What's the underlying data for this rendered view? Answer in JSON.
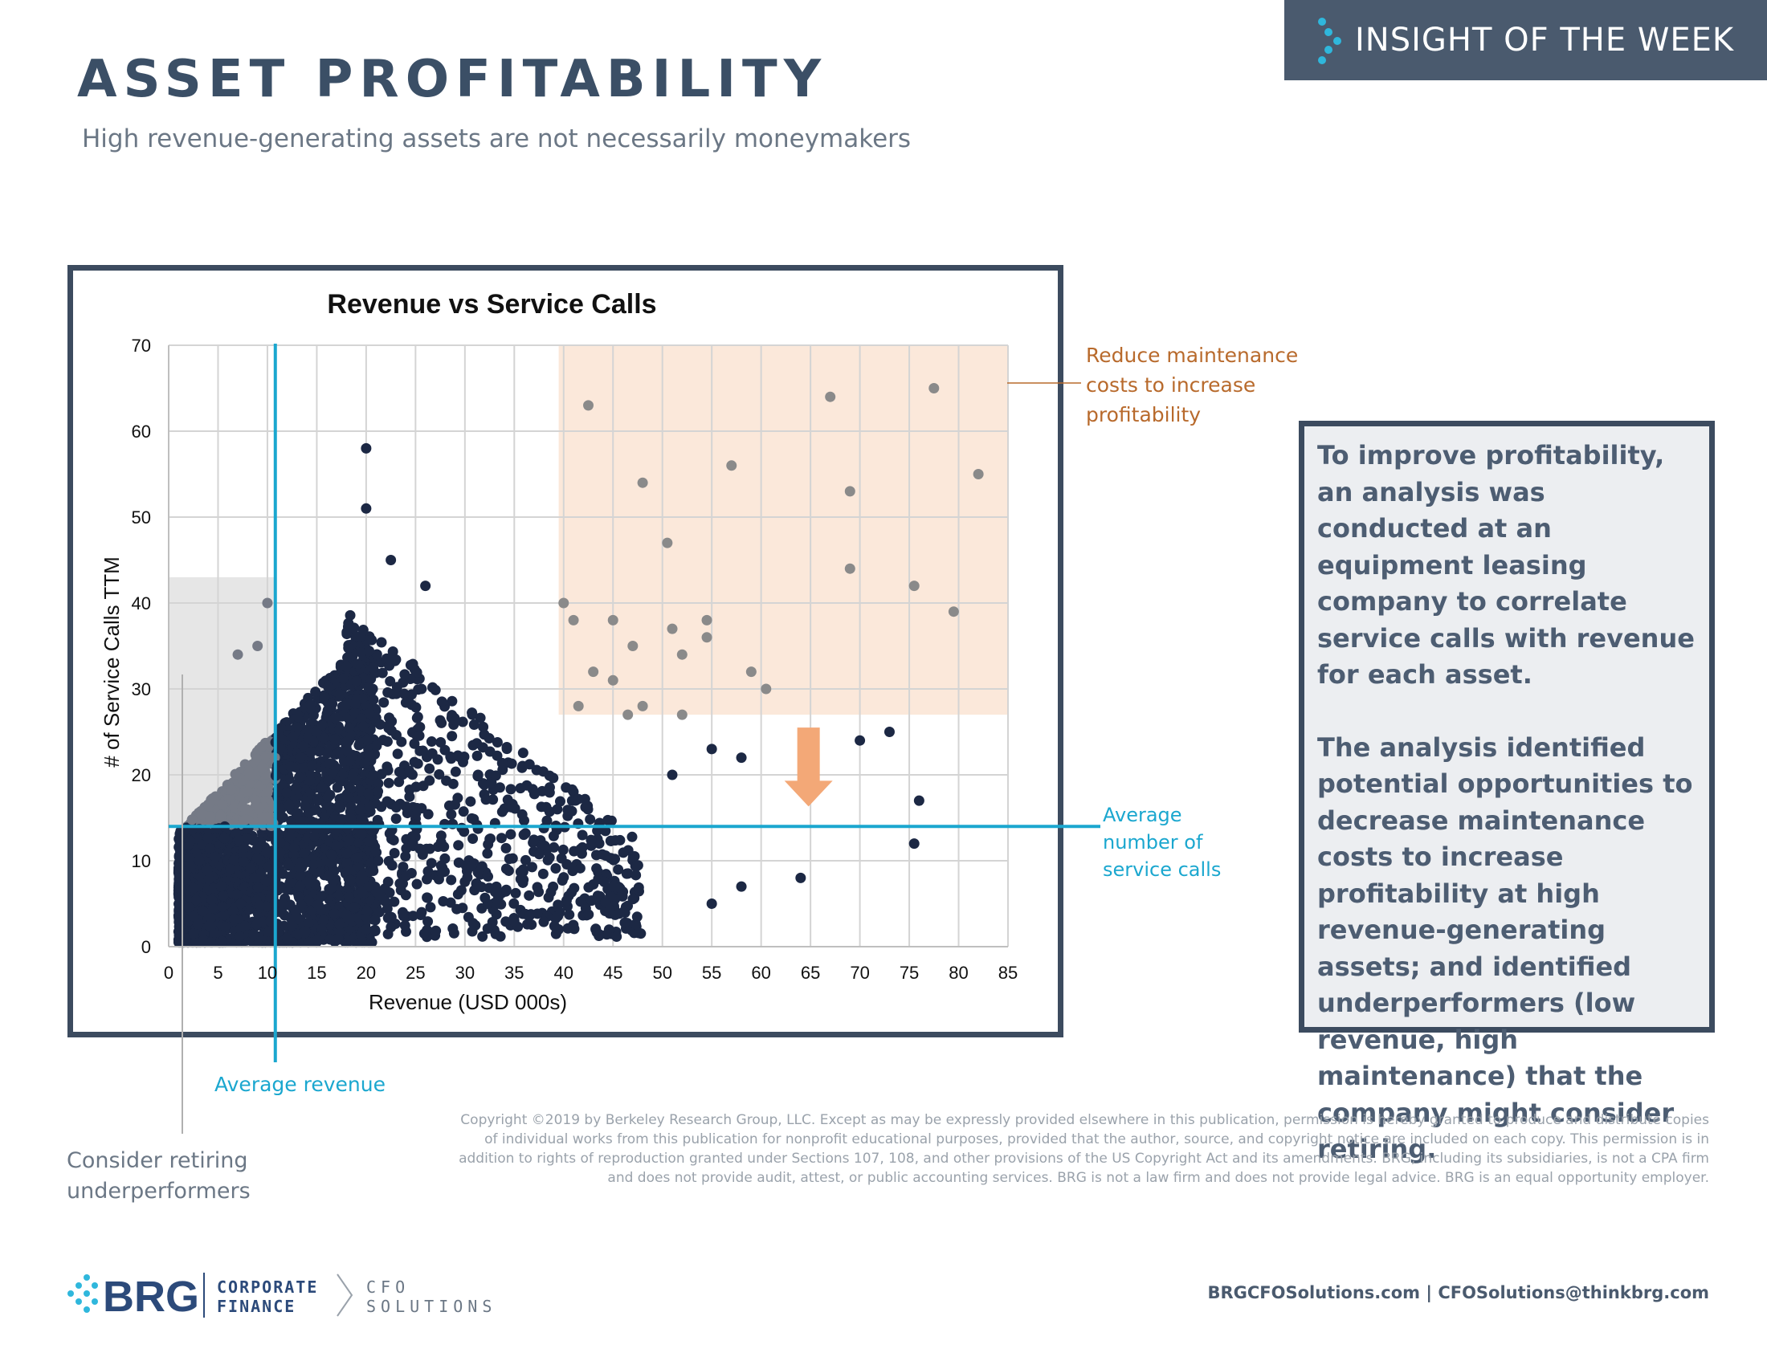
{
  "header": {
    "title": "ASSET PROFITABILITY",
    "subtitle": "High revenue-generating assets are not necessarily moneymakers",
    "banner_label": "INSIGHT OF THE WEEK"
  },
  "annotations": {
    "reduce_maintenance": [
      "Reduce maintenance",
      "costs to increase",
      "profitability"
    ],
    "average_calls": [
      "Average",
      "number of",
      "service calls"
    ],
    "average_revenue": "Average revenue",
    "consider_retiring": [
      "Consider retiring",
      "underperformers"
    ]
  },
  "side_panel": {
    "paragraph1": "To improve profitability, an analysis was conducted at an equipment leasing company to correlate service calls with revenue for each asset.",
    "paragraph2": "The analysis identified potential opportunities to decrease maintenance costs to increase profitability at high revenue-generating assets; and identified underperformers (low revenue, high maintenance) that the company might consider retiring."
  },
  "footer": {
    "copyright": "Copyright ©2019 by Berkeley Research Group, LLC. Except as may be expressly provided elsewhere in this publication, permission is hereby granted to produce and distribute copies of individual works from this publication for nonprofit educational purposes, provided that the author, source, and copyright notice are included on each copy. This permission is in addition to rights of reproduction granted under Sections 107, 108, and other provisions of the US Copyright Act and its amendments. BRG, including its subsidiaries, is not a CPA firm and does not provide audit, attest, or public accounting services. BRG is not a law firm and does not provide legal advice. BRG is an equal opportunity employer.",
    "contact": "BRGCFOSolutions.com  |  CFOSolutions@thinkbrg.com",
    "logo_brand": "BRG",
    "logo_line1": "CORPORATE",
    "logo_line2": "FINANCE",
    "logo_line3": "CFO",
    "logo_line4": "SOLUTIONS"
  },
  "colors": {
    "navy_points": "#1c2844",
    "gray_points": "#757a86",
    "light_gray_points": "#8a8a8a",
    "average_line": "#1ba7cf",
    "orange_zone": "#fbe8da",
    "orange_arrow": "#f3a877",
    "gray_zone": "#e6e6e6"
  },
  "chart_data": {
    "type": "scatter",
    "title": "Revenue vs Service Calls",
    "xlabel": "Revenue  (USD 000s)",
    "ylabel": "# of Service   Calls TTM",
    "xlim": [
      0,
      85
    ],
    "ylim": [
      0,
      70
    ],
    "xticks": [
      0,
      5,
      10,
      15,
      20,
      25,
      30,
      35,
      40,
      45,
      50,
      55,
      60,
      65,
      70,
      75,
      80,
      85
    ],
    "yticks": [
      0,
      10,
      20,
      30,
      40,
      50,
      60,
      70
    ],
    "grid": true,
    "average_revenue": 10.8,
    "average_service_calls": 14,
    "zones": {
      "reduce_maintenance": {
        "x": [
          39.5,
          85
        ],
        "y": [
          27,
          70
        ]
      },
      "consider_retiring": {
        "x": [
          0,
          10.8
        ],
        "y": [
          14,
          43
        ]
      }
    },
    "outliers": [
      [
        42.5,
        63
      ],
      [
        48,
        54
      ],
      [
        50.5,
        47
      ],
      [
        57,
        56
      ],
      [
        67,
        64
      ],
      [
        69,
        53
      ],
      [
        69,
        44
      ],
      [
        77.5,
        65
      ],
      [
        82,
        55
      ],
      [
        75.5,
        42
      ],
      [
        79.5,
        39
      ],
      [
        40,
        40
      ],
      [
        41,
        38
      ],
      [
        45,
        38
      ],
      [
        47,
        35
      ],
      [
        51,
        37
      ],
      [
        52,
        34
      ],
      [
        54.5,
        38
      ],
      [
        54.5,
        36
      ],
      [
        59,
        32
      ],
      [
        60.5,
        30
      ],
      [
        41.5,
        28
      ],
      [
        43,
        32
      ],
      [
        45,
        31
      ],
      [
        46.5,
        27
      ],
      [
        48,
        28
      ],
      [
        52,
        27
      ],
      [
        20,
        58
      ],
      [
        20,
        51
      ],
      [
        22.5,
        45
      ],
      [
        26,
        42
      ],
      [
        10,
        40
      ],
      [
        9,
        35
      ],
      [
        7,
        34
      ],
      [
        70,
        24
      ],
      [
        73,
        25
      ],
      [
        55,
        23
      ],
      [
        58,
        22
      ],
      [
        51,
        20
      ],
      [
        76,
        17
      ],
      [
        75.5,
        12
      ],
      [
        64,
        8
      ],
      [
        58,
        7
      ],
      [
        55,
        5
      ],
      [
        45,
        7
      ],
      [
        35,
        3
      ],
      [
        20,
        2
      ],
      [
        12,
        1
      ]
    ],
    "series": [
      {
        "points": "dense cluster (generated)",
        "x_range": [
          0,
          45
        ],
        "y_range": [
          0,
          40
        ]
      }
    ]
  }
}
